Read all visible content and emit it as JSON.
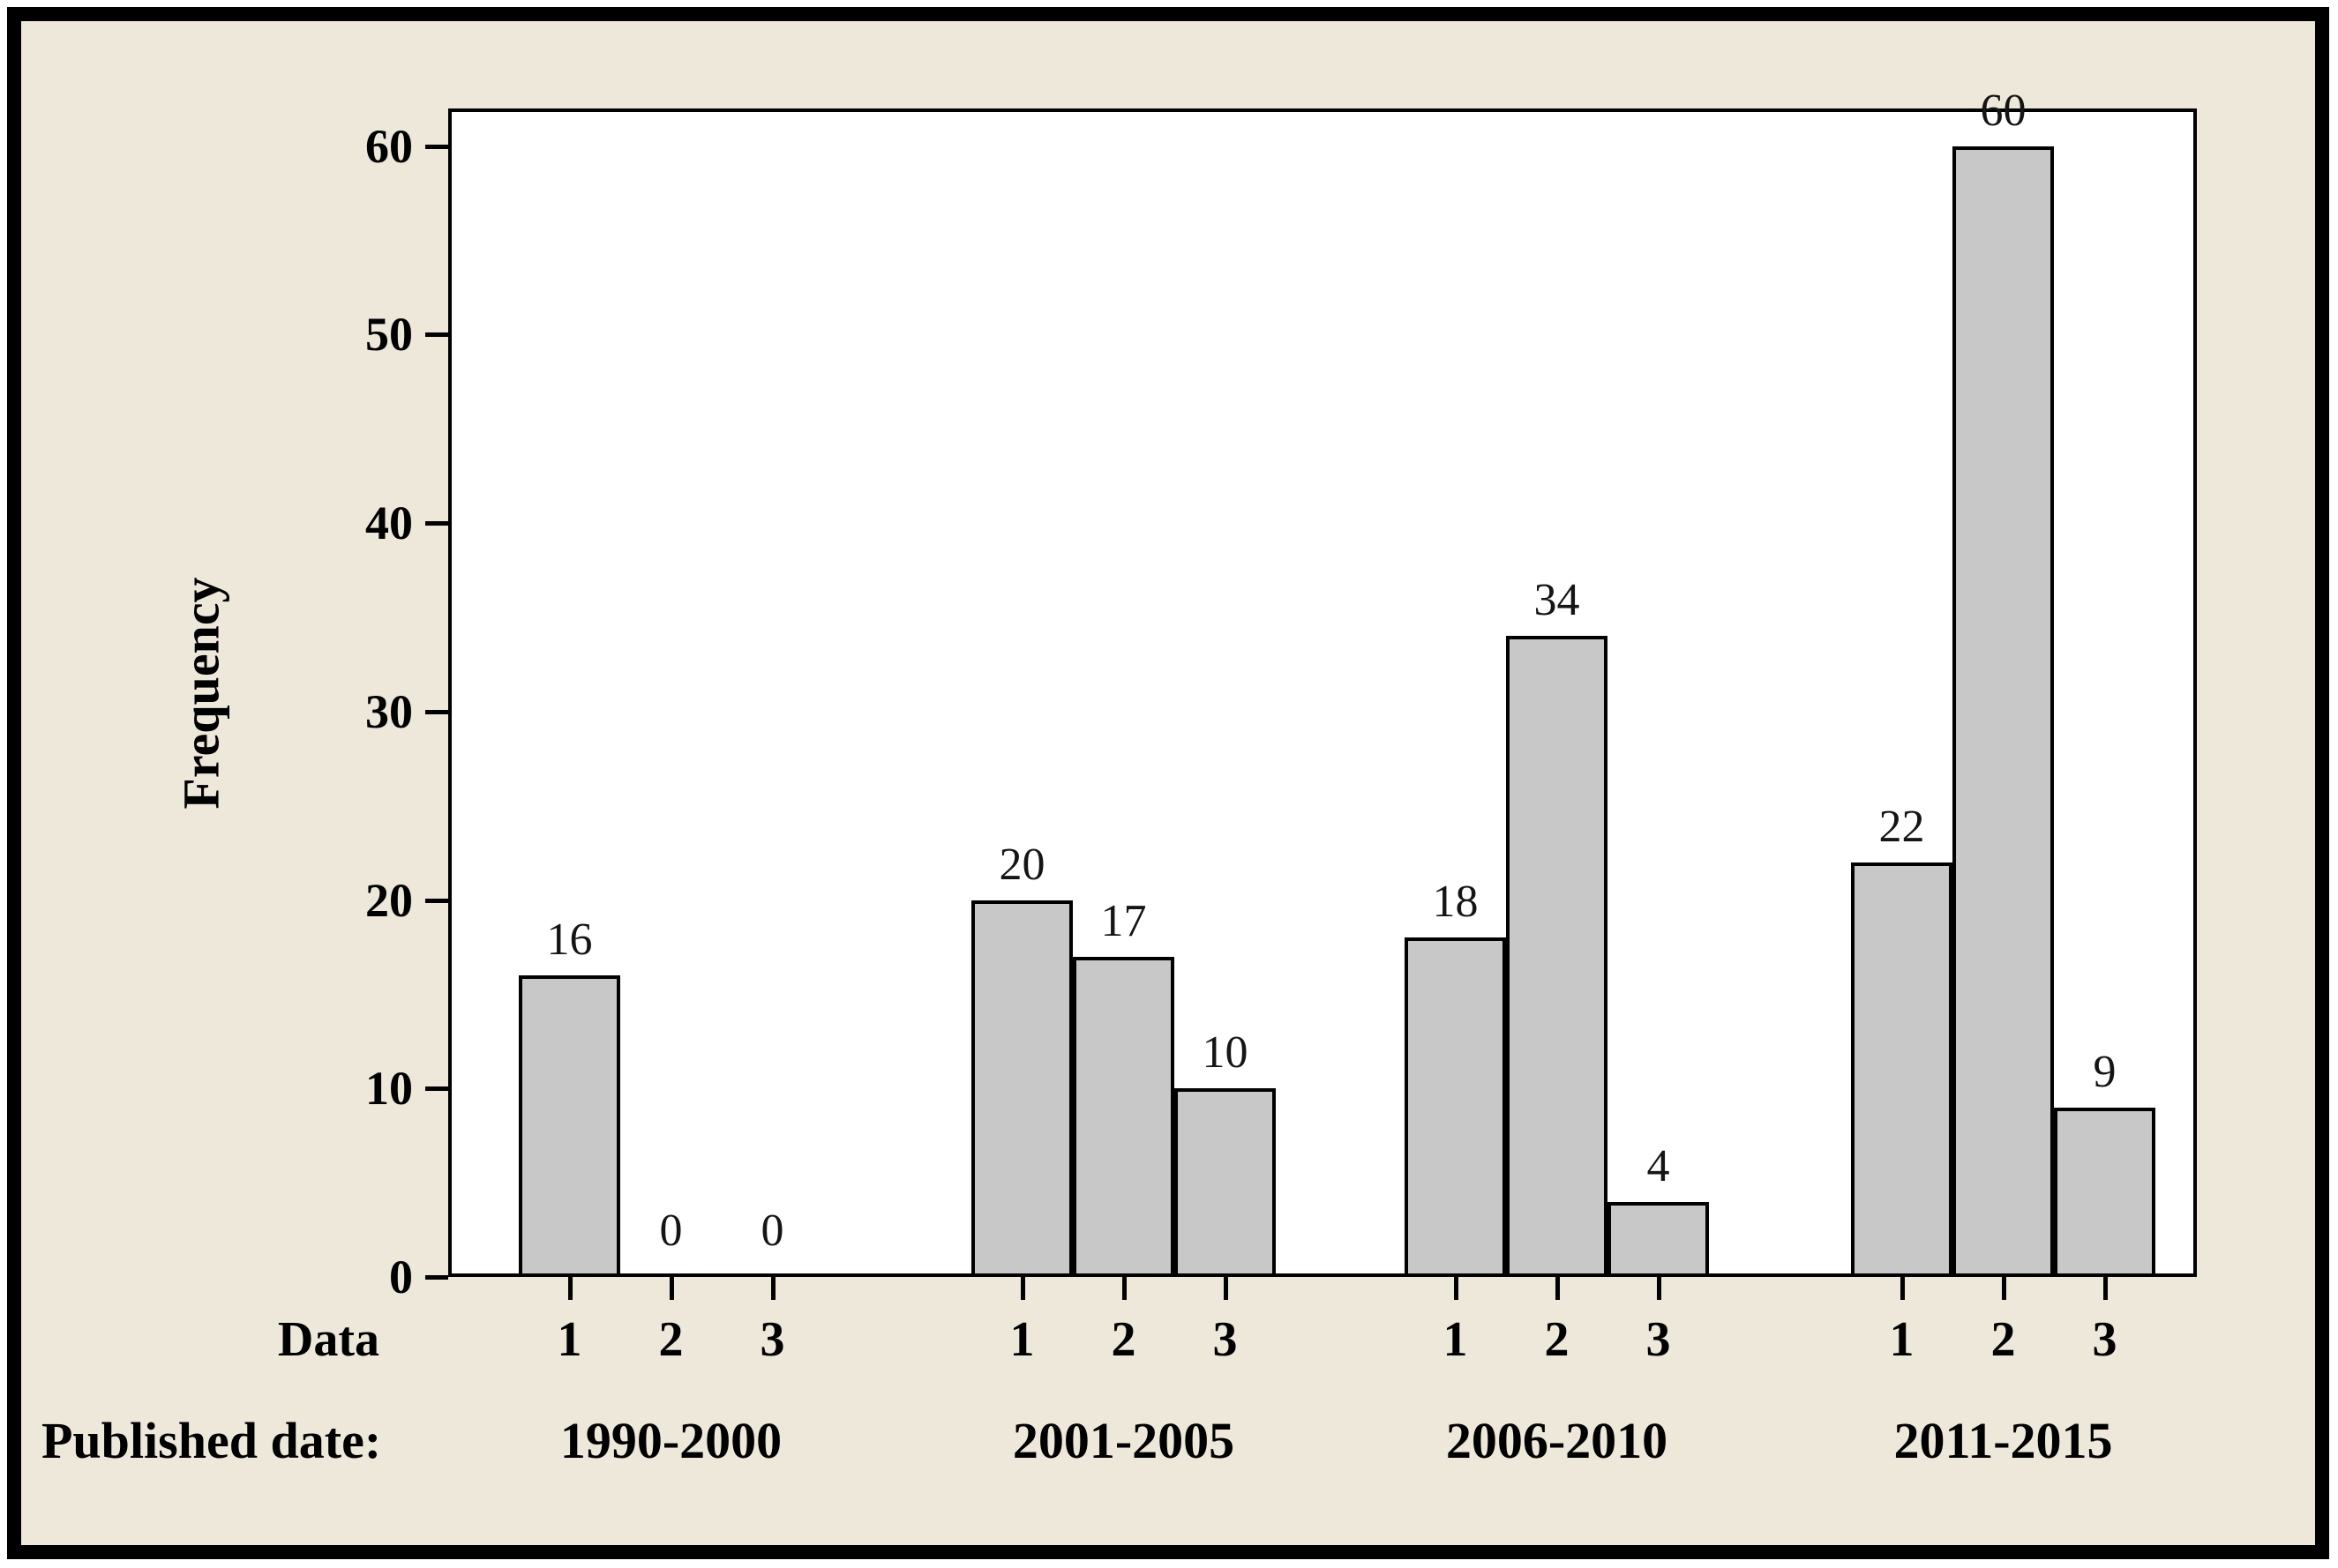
{
  "figure": {
    "background_color": "#EEE8DB",
    "frame_color": "#000000"
  },
  "chart_data": {
    "type": "bar",
    "title": "",
    "ylabel": "Frequency",
    "xlabel": "Data",
    "group_axis_label": "Published date:",
    "y_ticks": [
      0,
      10,
      20,
      30,
      40,
      50,
      60
    ],
    "ylim": [
      0,
      62
    ],
    "grid": false,
    "legend": false,
    "plot_background": "#FFFFFF",
    "bar_color": "#C8C8C8",
    "bar_border_color": "#000000",
    "bar_labels_shown": true,
    "categories_per_group": [
      "1",
      "2",
      "3"
    ],
    "groups": [
      {
        "label": "1990-2000",
        "values": [
          16,
          0,
          0
        ]
      },
      {
        "label": "2001-2005",
        "values": [
          20,
          17,
          10
        ]
      },
      {
        "label": "2006-2010",
        "values": [
          18,
          34,
          4
        ]
      },
      {
        "label": "2011-2015",
        "values": [
          22,
          60,
          9
        ]
      }
    ]
  }
}
